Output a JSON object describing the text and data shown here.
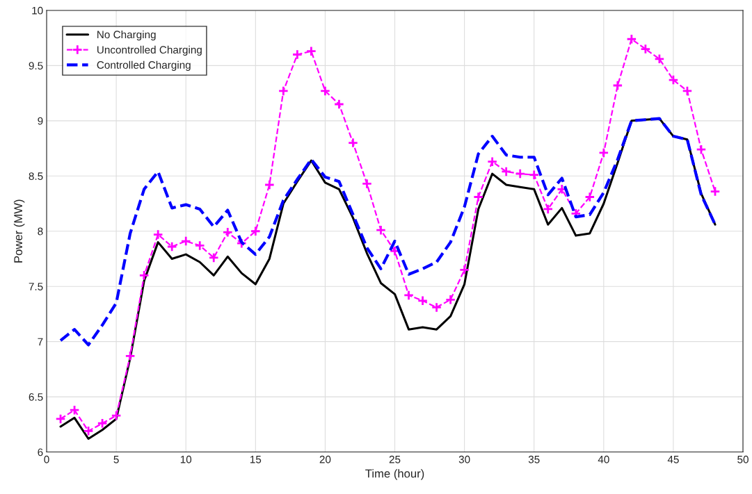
{
  "chart_data": {
    "type": "line",
    "xlabel": "Time (hour)",
    "ylabel": "Power (MW)",
    "x": [
      1,
      2,
      3,
      4,
      5,
      6,
      7,
      8,
      9,
      10,
      11,
      12,
      13,
      14,
      15,
      16,
      17,
      18,
      19,
      20,
      21,
      22,
      23,
      24,
      25,
      26,
      27,
      28,
      29,
      30,
      31,
      32,
      33,
      34,
      35,
      36,
      37,
      38,
      39,
      40,
      41,
      42,
      43,
      44,
      45,
      46,
      47,
      48
    ],
    "series": [
      {
        "name": "No Charging",
        "color": "#000000",
        "line_style": "solid",
        "marker": "none",
        "values": [
          6.23,
          6.31,
          6.12,
          6.2,
          6.3,
          6.85,
          7.55,
          7.9,
          7.75,
          7.79,
          7.72,
          7.6,
          7.77,
          7.62,
          7.52,
          7.75,
          8.25,
          8.45,
          8.64,
          8.44,
          8.38,
          8.12,
          7.8,
          7.53,
          7.43,
          7.11,
          7.13,
          7.11,
          7.23,
          7.52,
          8.2,
          8.52,
          8.42,
          8.4,
          8.38,
          8.06,
          8.21,
          7.96,
          7.98,
          8.25,
          8.62,
          9.0,
          9.01,
          9.02,
          8.86,
          8.83,
          8.34,
          8.06
        ]
      },
      {
        "name": "Uncontrolled Charging",
        "color": "#ff00ff",
        "line_style": "dashed",
        "marker": "cross",
        "values": [
          6.3,
          6.38,
          6.19,
          6.26,
          6.33,
          6.87,
          7.6,
          7.97,
          7.86,
          7.91,
          7.87,
          7.76,
          7.99,
          7.89,
          8.0,
          8.42,
          9.27,
          9.6,
          9.63,
          9.27,
          9.15,
          8.8,
          8.43,
          8.01,
          7.82,
          7.42,
          7.37,
          7.31,
          7.38,
          7.65,
          8.31,
          8.63,
          8.54,
          8.52,
          8.51,
          8.2,
          8.38,
          8.16,
          8.31,
          8.71,
          9.32,
          9.74,
          9.65,
          9.56,
          9.37,
          9.27,
          8.74,
          8.36
        ]
      },
      {
        "name": "Controlled Charging",
        "color": "#0000ff",
        "line_style": "dashed",
        "marker": "none",
        "values": [
          7.01,
          7.11,
          6.97,
          7.15,
          7.35,
          7.98,
          8.38,
          8.54,
          8.21,
          8.24,
          8.2,
          8.04,
          8.19,
          7.9,
          7.79,
          7.95,
          8.28,
          8.47,
          8.65,
          8.49,
          8.45,
          8.15,
          7.85,
          7.66,
          7.91,
          7.61,
          7.66,
          7.72,
          7.9,
          8.22,
          8.7,
          8.86,
          8.69,
          8.67,
          8.67,
          8.33,
          8.48,
          8.13,
          8.15,
          8.35,
          8.65,
          9.0,
          9.01,
          9.02,
          8.86,
          8.83,
          8.33,
          8.06
        ]
      }
    ],
    "xlim": [
      0,
      50
    ],
    "xticks": [
      0,
      5,
      10,
      15,
      20,
      25,
      30,
      35,
      40,
      45,
      50
    ],
    "ylim": [
      6,
      10
    ],
    "yticks": [
      6,
      6.5,
      7,
      7.5,
      8,
      8.5,
      9,
      9.5,
      10
    ],
    "grid": true,
    "legend": "top left"
  }
}
